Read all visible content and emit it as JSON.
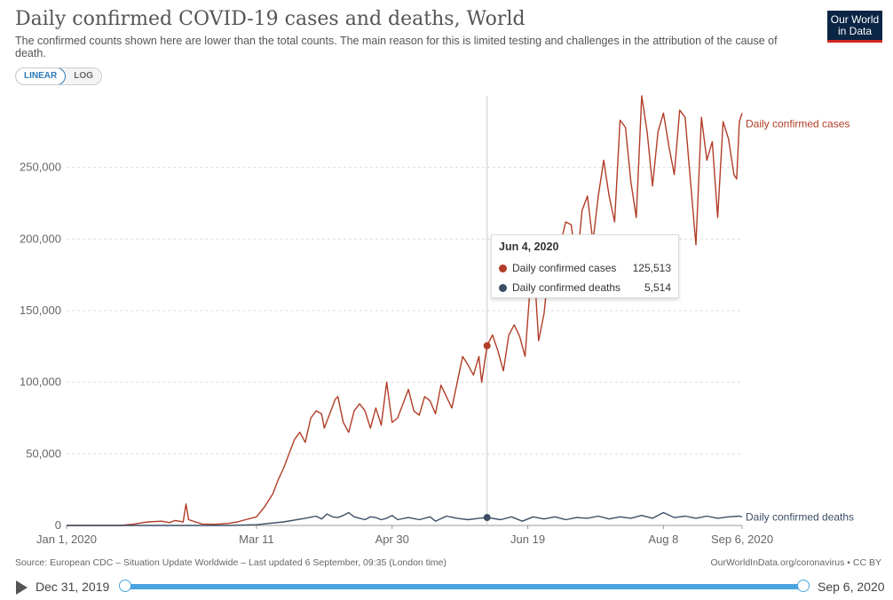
{
  "header": {
    "title": "Daily confirmed COVID-19 cases and deaths, World",
    "subtitle": "The confirmed counts shown here are lower than the total counts. The main reason for this is limited testing and challenges in the attribution of the cause of death.",
    "logo_line1": "Our World",
    "logo_line2": "in Data"
  },
  "scale_toggle": {
    "linear": "LINEAR",
    "log": "LOG",
    "selected": "LINEAR"
  },
  "colors": {
    "cases": "#b13d27",
    "deaths": "#3c4e66",
    "accent": "#4aa3df"
  },
  "tooltip": {
    "date": "Jun 4, 2020",
    "rows": [
      {
        "label": "Daily confirmed cases",
        "value": "125,513"
      },
      {
        "label": "Daily confirmed deaths",
        "value": "5,514"
      }
    ]
  },
  "footer": {
    "source": "Source: European CDC – Situation Update Worldwide – Last updated 6 September, 09:35 (London time)",
    "license": "OurWorldInData.org/coronavirus • CC BY"
  },
  "timeline": {
    "start": "Dec 31, 2019",
    "end": "Sep 6, 2020",
    "range_fraction": [
      0,
      1
    ]
  },
  "chart_data": {
    "type": "line",
    "title": "Daily confirmed COVID-19 cases and deaths, World",
    "x_ticks": [
      "Jan 1, 2020",
      "Mar 11",
      "Apr 30",
      "Jun 19",
      "Aug 8",
      "Sep 6, 2020"
    ],
    "x_tick_days": [
      0,
      70,
      120,
      170,
      220,
      249
    ],
    "y_ticks": [
      "0",
      "50,000",
      "100,000",
      "150,000",
      "200,000",
      "250,000"
    ],
    "y_tick_values": [
      0,
      50000,
      100000,
      150000,
      200000,
      250000
    ],
    "ylim": [
      0,
      300000
    ],
    "xlim_days": [
      0,
      249
    ],
    "grid": true,
    "legend": "right (labels at line ends)",
    "hover_day": 155,
    "series": [
      {
        "name": "Daily confirmed cases",
        "day_values": [
          [
            0,
            0
          ],
          [
            20,
            0
          ],
          [
            25,
            1000
          ],
          [
            30,
            2500
          ],
          [
            35,
            3000
          ],
          [
            38,
            2000
          ],
          [
            40,
            3500
          ],
          [
            43,
            2500
          ],
          [
            44,
            15000
          ],
          [
            45,
            4000
          ],
          [
            50,
            1000
          ],
          [
            55,
            800
          ],
          [
            60,
            1500
          ],
          [
            63,
            2500
          ],
          [
            66,
            4000
          ],
          [
            70,
            6000
          ],
          [
            73,
            13000
          ],
          [
            76,
            22000
          ],
          [
            78,
            32000
          ],
          [
            80,
            40000
          ],
          [
            82,
            50000
          ],
          [
            84,
            60000
          ],
          [
            86,
            65000
          ],
          [
            88,
            58000
          ],
          [
            90,
            75000
          ],
          [
            92,
            80000
          ],
          [
            94,
            78000
          ],
          [
            95,
            68000
          ],
          [
            97,
            78000
          ],
          [
            99,
            88000
          ],
          [
            100,
            90000
          ],
          [
            102,
            72000
          ],
          [
            104,
            65000
          ],
          [
            106,
            80000
          ],
          [
            108,
            85000
          ],
          [
            110,
            80000
          ],
          [
            112,
            68000
          ],
          [
            114,
            82000
          ],
          [
            116,
            70000
          ],
          [
            118,
            100000
          ],
          [
            120,
            72000
          ],
          [
            122,
            75000
          ],
          [
            124,
            85000
          ],
          [
            126,
            95000
          ],
          [
            128,
            80000
          ],
          [
            130,
            77000
          ],
          [
            132,
            90000
          ],
          [
            134,
            87000
          ],
          [
            136,
            78000
          ],
          [
            138,
            98000
          ],
          [
            140,
            90000
          ],
          [
            142,
            82000
          ],
          [
            144,
            100000
          ],
          [
            146,
            118000
          ],
          [
            148,
            112000
          ],
          [
            150,
            105000
          ],
          [
            152,
            118000
          ],
          [
            153,
            100000
          ],
          [
            155,
            125513
          ],
          [
            157,
            133000
          ],
          [
            159,
            122000
          ],
          [
            161,
            108000
          ],
          [
            163,
            133000
          ],
          [
            165,
            140000
          ],
          [
            167,
            132000
          ],
          [
            169,
            118000
          ],
          [
            171,
            170000
          ],
          [
            173,
            160000
          ],
          [
            174,
            129000
          ],
          [
            176,
            148000
          ],
          [
            178,
            185000
          ],
          [
            180,
            175000
          ],
          [
            182,
            196000
          ],
          [
            184,
            212000
          ],
          [
            186,
            210000
          ],
          [
            188,
            180000
          ],
          [
            190,
            220000
          ],
          [
            192,
            230000
          ],
          [
            194,
            198000
          ],
          [
            196,
            230000
          ],
          [
            198,
            255000
          ],
          [
            200,
            230000
          ],
          [
            202,
            212000
          ],
          [
            204,
            283000
          ],
          [
            206,
            278000
          ],
          [
            208,
            240000
          ],
          [
            210,
            215000
          ],
          [
            212,
            300000
          ],
          [
            214,
            275000
          ],
          [
            216,
            237000
          ],
          [
            218,
            275000
          ],
          [
            220,
            288000
          ],
          [
            222,
            265000
          ],
          [
            224,
            245000
          ],
          [
            226,
            290000
          ],
          [
            228,
            285000
          ],
          [
            230,
            240000
          ],
          [
            232,
            196000
          ],
          [
            234,
            285000
          ],
          [
            236,
            255000
          ],
          [
            238,
            268000
          ],
          [
            240,
            215000
          ],
          [
            242,
            282000
          ],
          [
            244,
            270000
          ],
          [
            246,
            245000
          ],
          [
            247,
            242000
          ],
          [
            248,
            282000
          ],
          [
            249,
            288000
          ]
        ]
      },
      {
        "name": "Daily confirmed deaths",
        "day_values": [
          [
            0,
            0
          ],
          [
            60,
            0
          ],
          [
            70,
            500
          ],
          [
            80,
            2500
          ],
          [
            88,
            5000
          ],
          [
            92,
            6500
          ],
          [
            94,
            4500
          ],
          [
            96,
            8000
          ],
          [
            98,
            6000
          ],
          [
            100,
            5500
          ],
          [
            102,
            7000
          ],
          [
            104,
            9000
          ],
          [
            106,
            6000
          ],
          [
            108,
            5000
          ],
          [
            110,
            4000
          ],
          [
            112,
            6000
          ],
          [
            114,
            5500
          ],
          [
            116,
            4000
          ],
          [
            118,
            5000
          ],
          [
            120,
            7000
          ],
          [
            122,
            4000
          ],
          [
            126,
            5500
          ],
          [
            130,
            4000
          ],
          [
            134,
            6000
          ],
          [
            136,
            3000
          ],
          [
            140,
            6500
          ],
          [
            144,
            5000
          ],
          [
            148,
            4000
          ],
          [
            152,
            5000
          ],
          [
            155,
            5514
          ],
          [
            160,
            4000
          ],
          [
            164,
            6000
          ],
          [
            168,
            3000
          ],
          [
            172,
            6000
          ],
          [
            176,
            4500
          ],
          [
            180,
            6000
          ],
          [
            184,
            4000
          ],
          [
            188,
            5500
          ],
          [
            192,
            5000
          ],
          [
            196,
            6500
          ],
          [
            200,
            4500
          ],
          [
            204,
            6000
          ],
          [
            208,
            5000
          ],
          [
            212,
            7000
          ],
          [
            216,
            5000
          ],
          [
            220,
            9000
          ],
          [
            224,
            5500
          ],
          [
            228,
            6500
          ],
          [
            232,
            5000
          ],
          [
            236,
            6500
          ],
          [
            240,
            5000
          ],
          [
            244,
            6000
          ],
          [
            248,
            6500
          ],
          [
            249,
            6000
          ]
        ]
      }
    ]
  }
}
